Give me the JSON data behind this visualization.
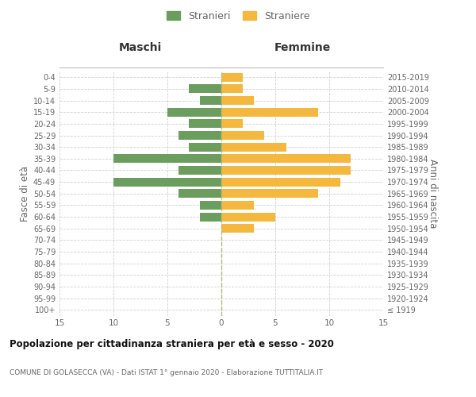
{
  "age_groups": [
    "100+",
    "95-99",
    "90-94",
    "85-89",
    "80-84",
    "75-79",
    "70-74",
    "65-69",
    "60-64",
    "55-59",
    "50-54",
    "45-49",
    "40-44",
    "35-39",
    "30-34",
    "25-29",
    "20-24",
    "15-19",
    "10-14",
    "5-9",
    "0-4"
  ],
  "birth_years": [
    "≤ 1919",
    "1920-1924",
    "1925-1929",
    "1930-1934",
    "1935-1939",
    "1940-1944",
    "1945-1949",
    "1950-1954",
    "1955-1959",
    "1960-1964",
    "1965-1969",
    "1970-1974",
    "1975-1979",
    "1980-1984",
    "1985-1989",
    "1990-1994",
    "1995-1999",
    "2000-2004",
    "2005-2009",
    "2010-2014",
    "2015-2019"
  ],
  "maschi": [
    0,
    0,
    0,
    0,
    0,
    0,
    0,
    0,
    2,
    2,
    4,
    10,
    4,
    10,
    3,
    4,
    3,
    5,
    2,
    3,
    0
  ],
  "femmine": [
    0,
    0,
    0,
    0,
    0,
    0,
    0,
    3,
    5,
    3,
    9,
    11,
    12,
    12,
    6,
    4,
    2,
    9,
    3,
    2,
    2
  ],
  "maschi_color": "#6b9e5e",
  "femmine_color": "#f5b83f",
  "title": "Popolazione per cittadinanza straniera per età e sesso - 2020",
  "subtitle": "COMUNE DI GOLASECCA (VA) - Dati ISTAT 1° gennaio 2020 - Elaborazione TUTTITALIA.IT",
  "ylabel_left": "Fasce di età",
  "ylabel_right": "Anni di nascita",
  "section_maschi": "Maschi",
  "section_femmine": "Femmine",
  "legend_maschi": "Stranieri",
  "legend_femmine": "Straniere",
  "xlim": 15,
  "background_color": "#ffffff",
  "grid_color": "#d0d0d0",
  "bar_height": 0.75,
  "label_color": "#666666",
  "header_color": "#333333",
  "centerline_color": "#b8b870",
  "title_color": "#111111",
  "subtitle_color": "#666666"
}
